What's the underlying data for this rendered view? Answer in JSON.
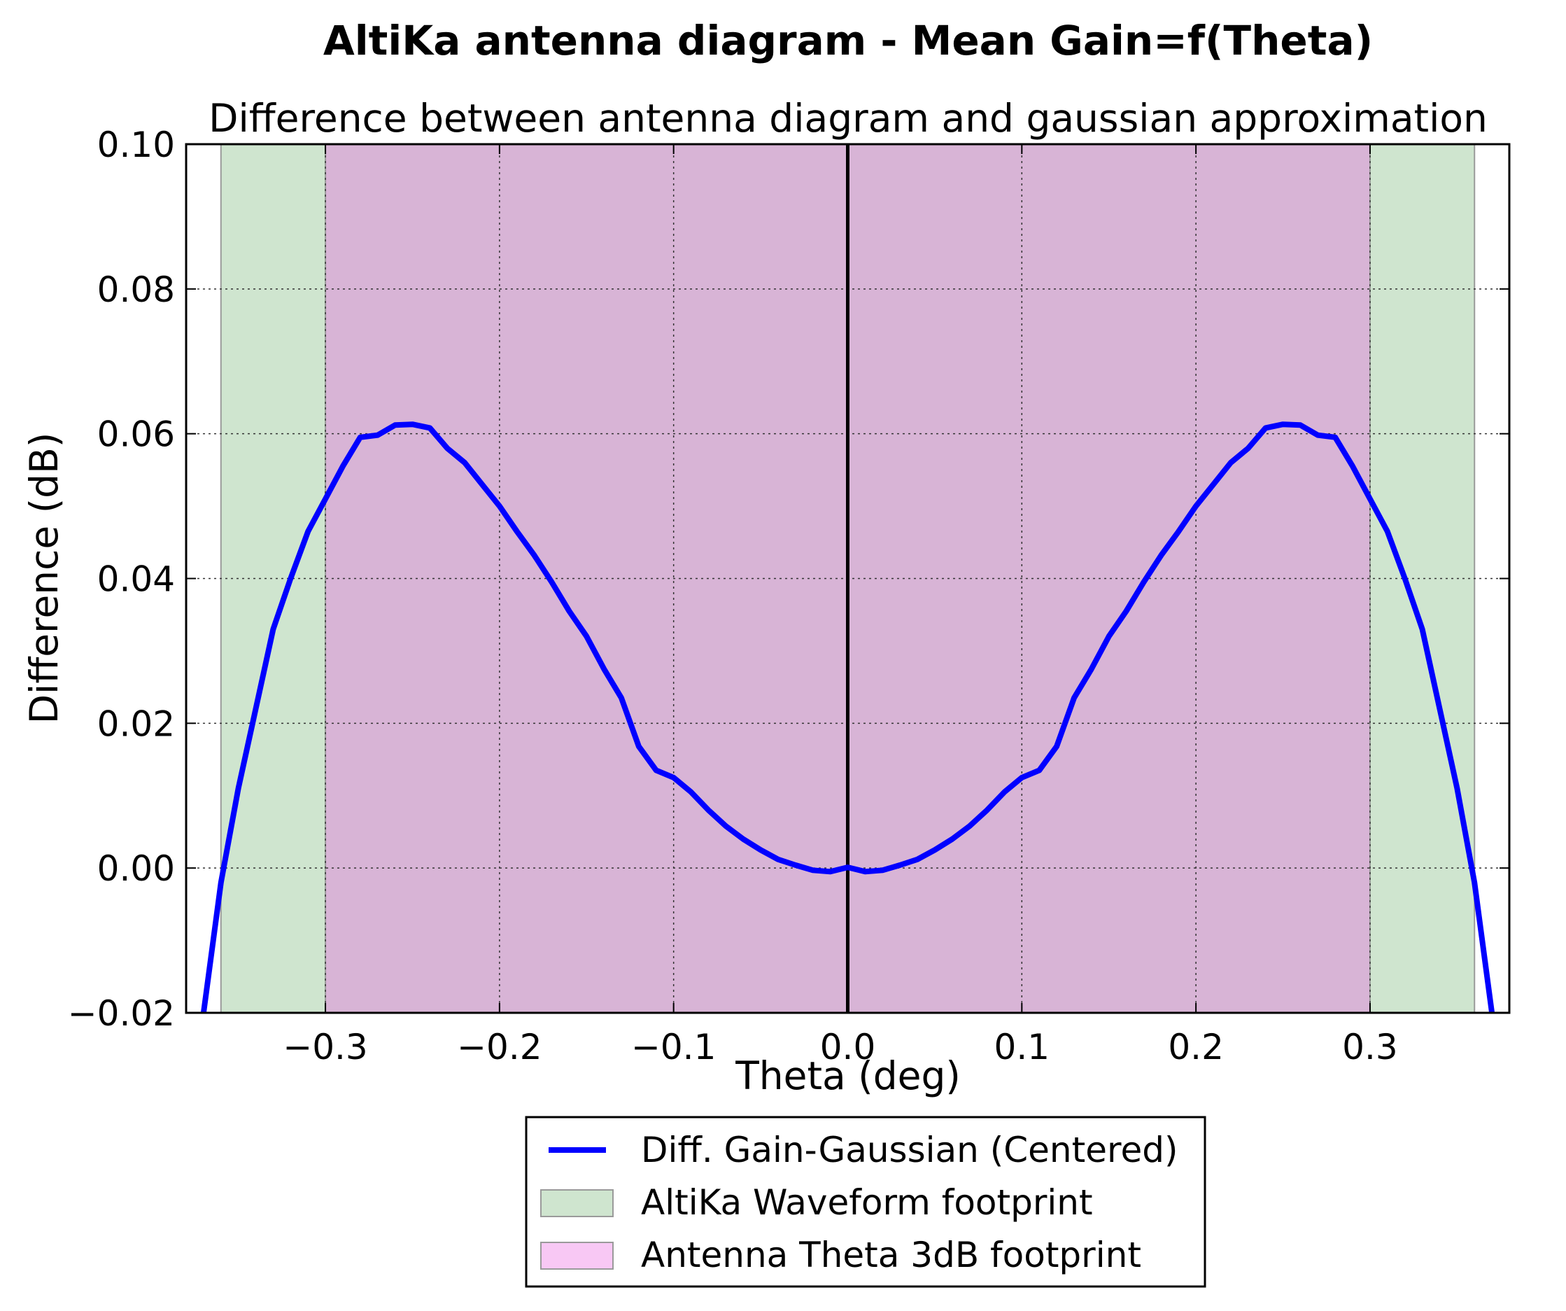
{
  "chart_data": {
    "type": "line",
    "suptitle": "AltiKa antenna diagram - Mean Gain=f(Theta)",
    "title": "Difference between antenna diagram and gaussian approximation",
    "xlabel": "Theta (deg)",
    "ylabel": "Difference (dB)",
    "xlim": [
      -0.38,
      0.38
    ],
    "ylim": [
      -0.02,
      0.1
    ],
    "x_ticks": [
      -0.3,
      -0.2,
      -0.1,
      0.0,
      0.1,
      0.2,
      0.3
    ],
    "x_tick_labels": [
      "−0.3",
      "−0.2",
      "−0.1",
      "0.0",
      "0.1",
      "0.2",
      "0.3"
    ],
    "y_ticks": [
      -0.02,
      0.0,
      0.02,
      0.04,
      0.06,
      0.08,
      0.1
    ],
    "y_tick_labels": [
      "−0.02",
      "0.00",
      "0.02",
      "0.04",
      "0.06",
      "0.08",
      "0.10"
    ],
    "grid": true,
    "legend_position": "bottom-center",
    "vertical_line": {
      "x": 0.0,
      "color": "#000000"
    },
    "spans": [
      {
        "name": "AltiKa Waveform footprint",
        "x0": -0.36,
        "x1": 0.36,
        "color": "#cfe5cf"
      },
      {
        "name": "Antenna Theta 3dB footprint",
        "x0": -0.3,
        "x1": 0.3,
        "color": "#d8b4d6",
        "legend_color": "#f8c8f4"
      }
    ],
    "series": [
      {
        "name": "Diff. Gain-Gaussian (Centered)",
        "color": "#0000ff",
        "x": [
          -0.37,
          -0.36,
          -0.35,
          -0.34,
          -0.33,
          -0.32,
          -0.31,
          -0.3,
          -0.29,
          -0.28,
          -0.27,
          -0.26,
          -0.25,
          -0.24,
          -0.23,
          -0.22,
          -0.21,
          -0.2,
          -0.19,
          -0.18,
          -0.17,
          -0.16,
          -0.15,
          -0.14,
          -0.13,
          -0.12,
          -0.11,
          -0.1,
          -0.09,
          -0.08,
          -0.07,
          -0.06,
          -0.05,
          -0.04,
          -0.03,
          -0.02,
          -0.01,
          0.0,
          0.01,
          0.02,
          0.03,
          0.04,
          0.05,
          0.06,
          0.07,
          0.08,
          0.09,
          0.1,
          0.11,
          0.12,
          0.13,
          0.14,
          0.15,
          0.16,
          0.17,
          0.18,
          0.19,
          0.2,
          0.21,
          0.22,
          0.23,
          0.24,
          0.25,
          0.26,
          0.27,
          0.28,
          0.29,
          0.3,
          0.31,
          0.32,
          0.33,
          0.34,
          0.35,
          0.36,
          0.37
        ],
        "y": [
          -0.02,
          -0.002,
          0.011,
          0.022,
          0.033,
          0.04,
          0.0465,
          0.051,
          0.0555,
          0.0595,
          0.0598,
          0.0612,
          0.0613,
          0.0608,
          0.058,
          0.056,
          0.053,
          0.05,
          0.0465,
          0.0432,
          0.0395,
          0.0355,
          0.032,
          0.0275,
          0.0235,
          0.0168,
          0.0135,
          0.0125,
          0.0105,
          0.008,
          0.0058,
          0.004,
          0.0025,
          0.0012,
          0.0004,
          -0.0003,
          -0.0005,
          0.0001,
          -0.0005,
          -0.0003,
          0.0004,
          0.0012,
          0.0025,
          0.004,
          0.0058,
          0.008,
          0.0105,
          0.0125,
          0.0135,
          0.0168,
          0.0235,
          0.0275,
          0.032,
          0.0355,
          0.0395,
          0.0432,
          0.0465,
          0.05,
          0.053,
          0.056,
          0.058,
          0.0608,
          0.0613,
          0.0612,
          0.0598,
          0.0595,
          0.0555,
          0.051,
          0.0465,
          0.04,
          0.033,
          0.022,
          0.011,
          -0.002,
          -0.02
        ]
      }
    ],
    "legend": [
      {
        "kind": "line",
        "label": "Diff. Gain-Gaussian (Centered)",
        "color": "#0000ff"
      },
      {
        "kind": "patch",
        "label": "AltiKa Waveform footprint",
        "color": "#cfe5cf"
      },
      {
        "kind": "patch",
        "label": "Antenna Theta 3dB footprint",
        "color": "#f8c8f4"
      }
    ]
  }
}
